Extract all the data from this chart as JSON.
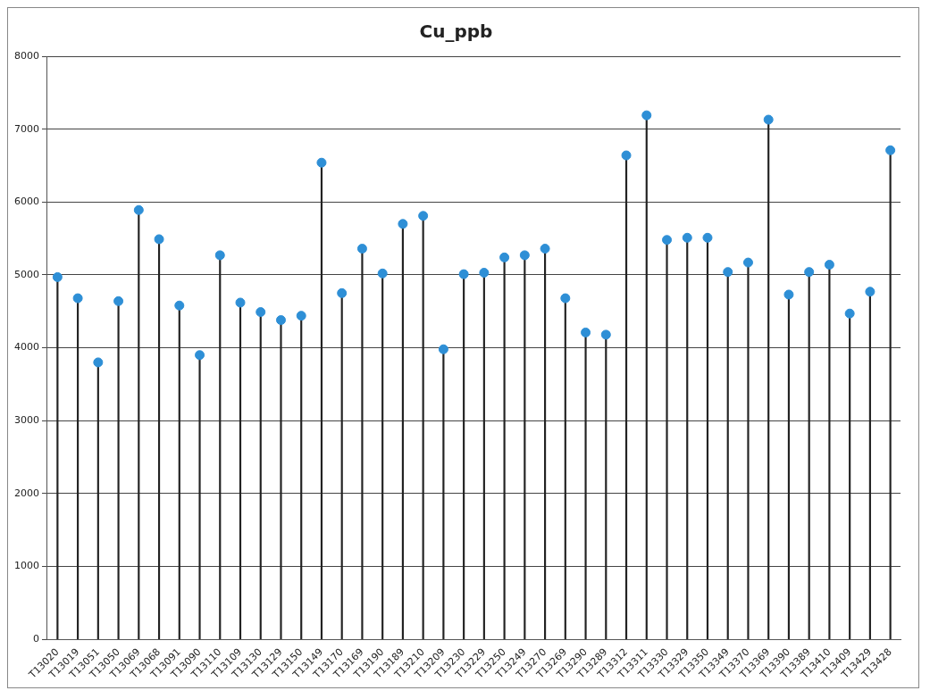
{
  "chart_data": {
    "type": "lollipop",
    "title": "Cu_ppb",
    "categories": [
      "T13020",
      "T13019",
      "T13051",
      "T13050",
      "T13069",
      "T13068",
      "T13091",
      "T13090",
      "T13110",
      "T13109",
      "T13130",
      "T13129",
      "T13150",
      "T13149",
      "T13170",
      "T13169",
      "T13190",
      "T13189",
      "T13210",
      "T13209",
      "T13230",
      "T13229",
      "T13250",
      "T13249",
      "T13270",
      "T13269",
      "T13290",
      "T13289",
      "T13312",
      "T13311",
      "T13330",
      "T13329",
      "T13350",
      "T13349",
      "T13370",
      "T13369",
      "T13390",
      "T13389",
      "T13410",
      "T13409",
      "T13429",
      "T13428"
    ],
    "values": [
      4970,
      4680,
      3800,
      4640,
      5890,
      5490,
      4580,
      3900,
      5270,
      4620,
      4490,
      4380,
      4440,
      6540,
      4750,
      5360,
      5020,
      5700,
      5810,
      3980,
      5010,
      5030,
      5240,
      5270,
      5360,
      4680,
      4210,
      4180,
      6640,
      7190,
      5480,
      5510,
      5510,
      5040,
      5170,
      7130,
      4730,
      5040,
      5140,
      4470,
      4770,
      6710
    ],
    "color": "#2e8fd6",
    "marker": "circle",
    "ylim": [
      0,
      8000
    ],
    "yticks": [
      0,
      1000,
      2000,
      3000,
      4000,
      5000,
      6000,
      7000,
      8000
    ],
    "grid": "y",
    "legend": false
  }
}
